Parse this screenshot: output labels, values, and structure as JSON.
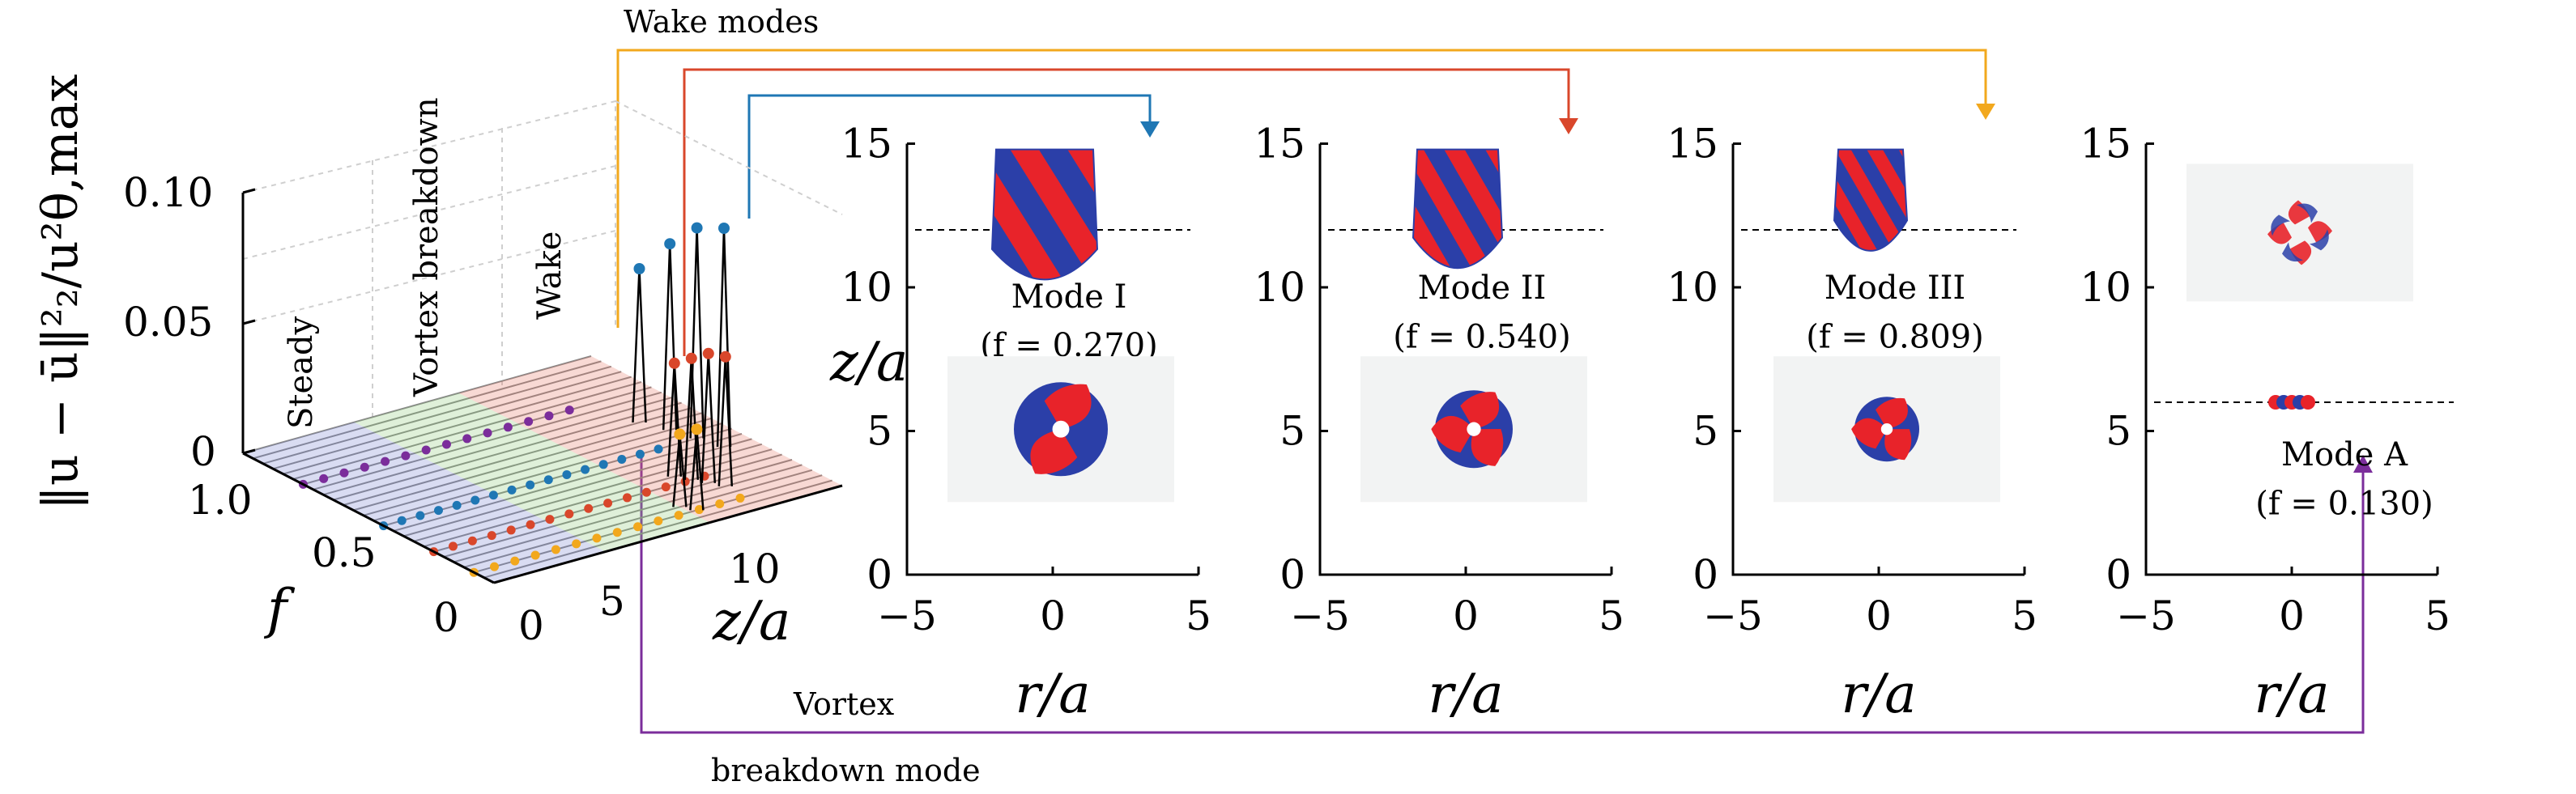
{
  "figure": {
    "wake_modes_label": "Wake modes",
    "vortex_breakdown_label_1": "Vortex",
    "vortex_breakdown_label_2": "breakdown mode",
    "colors": {
      "blue": "#1f77b4",
      "red": "#d9472b",
      "orange": "#f2a81d",
      "purple": "#7b2d9b",
      "green": "#77c26a",
      "steady": "#6b78c9",
      "iso_red": "#e8232a",
      "iso_blue": "#2b3fa8"
    }
  },
  "spectrum_plot": {
    "ylabel": "‖u − ū‖²₂/u²θ,max",
    "zticks": [
      "0",
      "0.05",
      "0.10"
    ],
    "f_ticks": [
      "0",
      "0.5",
      "1.0"
    ],
    "f_label": "f",
    "za_ticks": [
      "0",
      "5",
      "10"
    ],
    "za_label": "z/a",
    "za_side_label": "z/a",
    "region_labels": {
      "steady": "Steady",
      "vortex_breakdown": "Vortex breakdown",
      "wake": "Wake"
    }
  },
  "mode_panels": [
    {
      "name": "Mode I",
      "freq": "(f = 0.270)",
      "yticks": [
        "0",
        "5",
        "10",
        "15"
      ],
      "xticks": [
        "−5",
        "0",
        "5"
      ],
      "xlabel": "r/a"
    },
    {
      "name": "Mode II",
      "freq": "(f = 0.540)",
      "yticks": [
        "0",
        "5",
        "10",
        "15"
      ],
      "xticks": [
        "−5",
        "0",
        "5"
      ],
      "xlabel": "r/a"
    },
    {
      "name": "Mode III",
      "freq": "(f = 0.809)",
      "yticks": [
        "0",
        "5",
        "10",
        "15"
      ],
      "xticks": [
        "−5",
        "0",
        "5"
      ],
      "xlabel": "r/a"
    },
    {
      "name": "Mode A",
      "freq": "(f = 0.130)",
      "yticks": [
        "0",
        "5",
        "10",
        "15"
      ],
      "xticks": [
        "−5",
        "0",
        "5"
      ],
      "xlabel": "r/a"
    }
  ]
}
